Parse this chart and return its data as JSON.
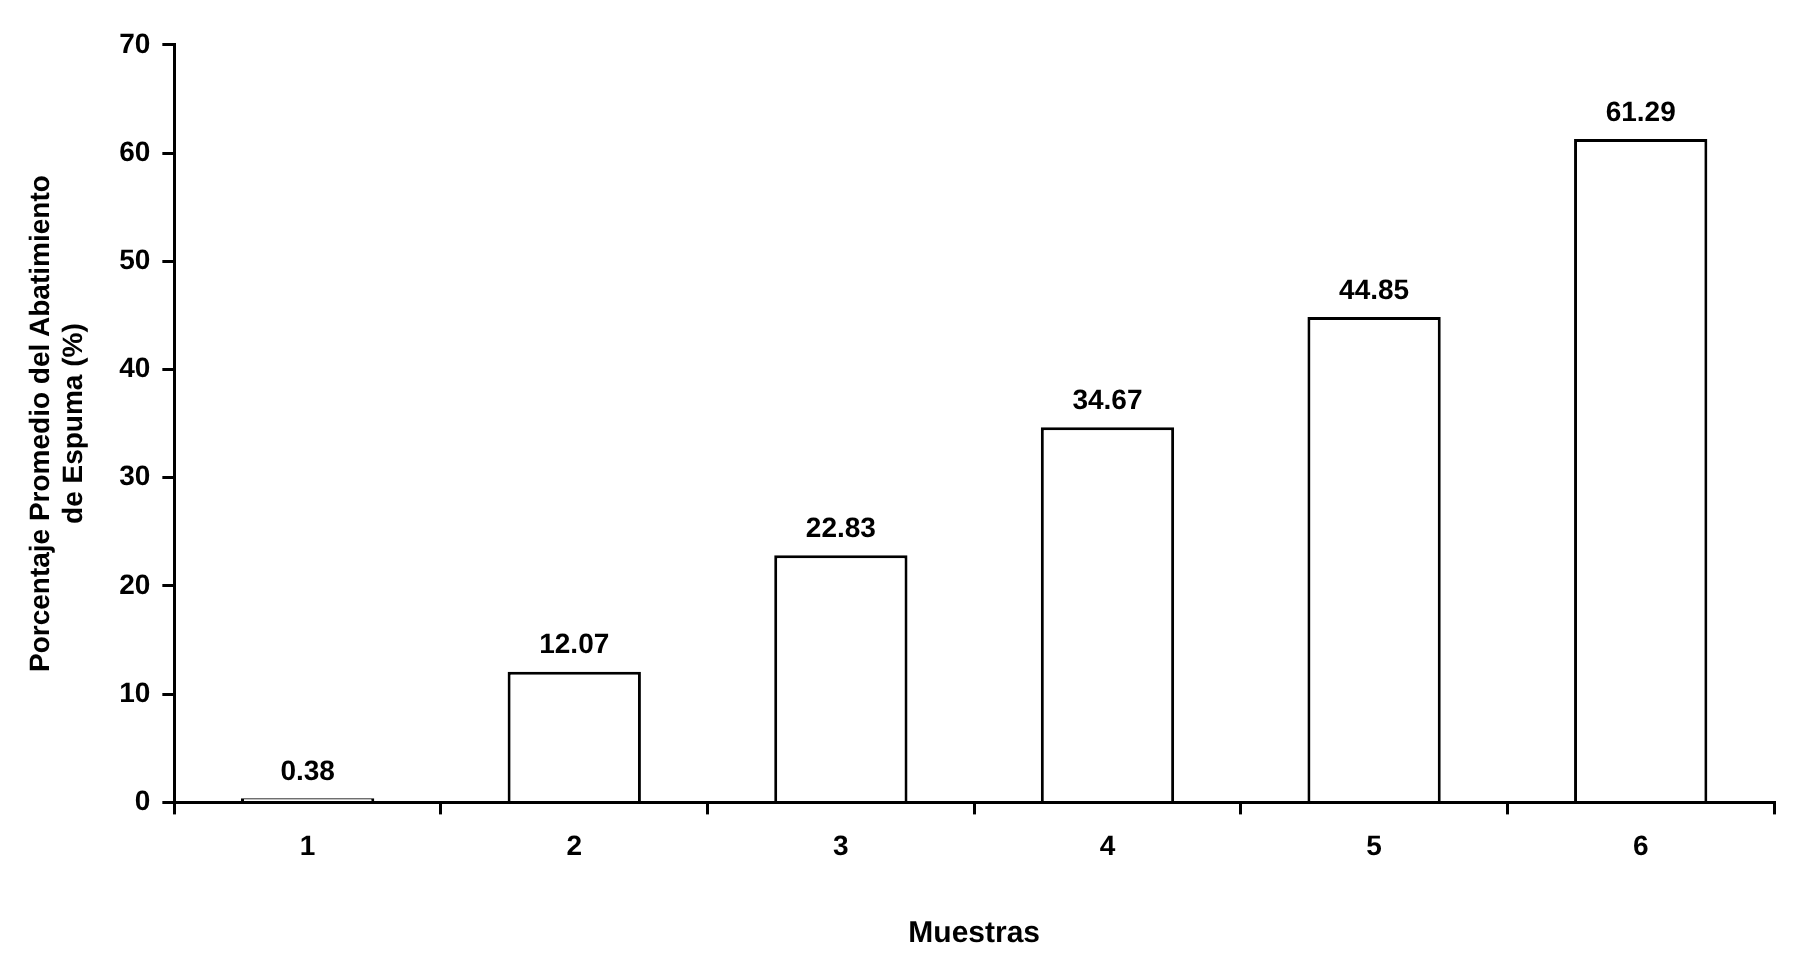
{
  "chart_data": {
    "type": "bar",
    "xlabel": "Muestras",
    "ylabel": "Porcentaje Promedio del Abatimiento de Espuma (%)",
    "categories": [
      "1",
      "2",
      "3",
      "4",
      "5",
      "6"
    ],
    "values": [
      0.38,
      12.07,
      22.83,
      34.67,
      44.85,
      61.29
    ],
    "color": "#ffffff",
    "ylim": [
      0,
      70
    ],
    "yticks": [
      0,
      10,
      20,
      30,
      40,
      50,
      60,
      70
    ],
    "grid": false,
    "data_labels": true
  }
}
